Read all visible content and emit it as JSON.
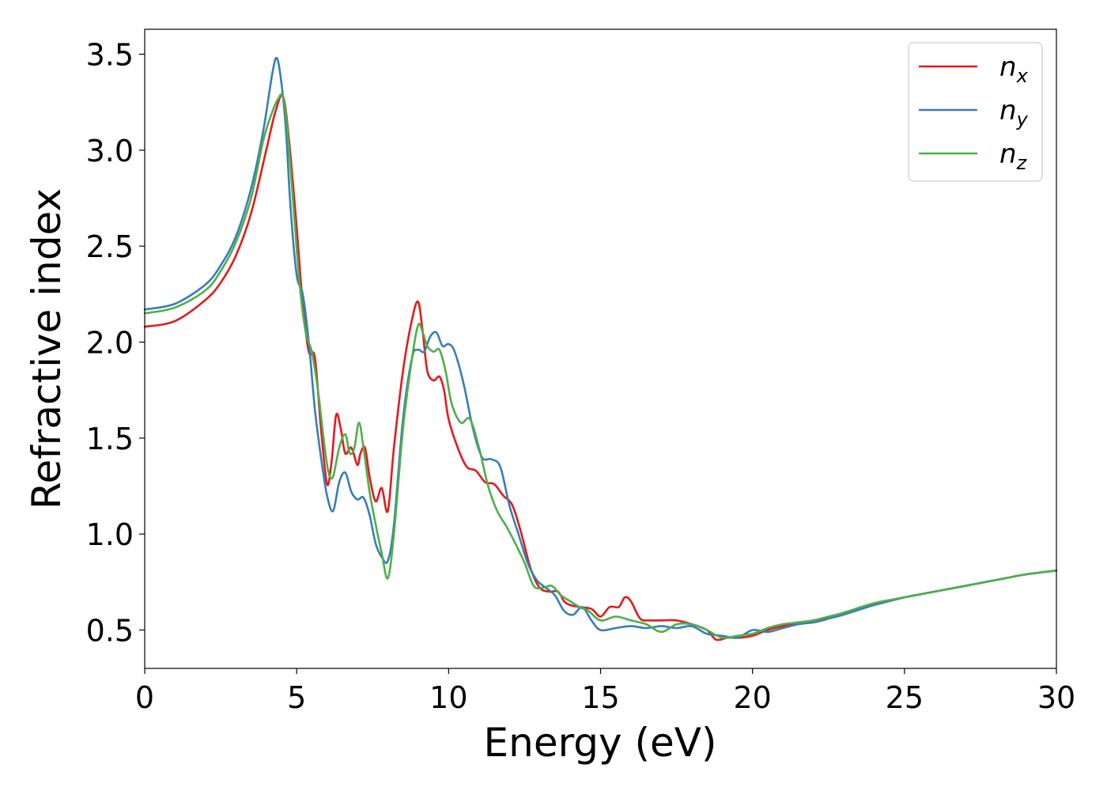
{
  "chart_data": {
    "type": "line",
    "xlabel": "Energy (eV)",
    "ylabel": "Refractive index",
    "xlim": [
      0,
      30
    ],
    "ylim": [
      0.3,
      3.63
    ],
    "xticks": [
      0,
      5,
      10,
      15,
      20,
      25,
      30
    ],
    "xtick_labels": [
      "0",
      "5",
      "10",
      "15",
      "20",
      "25",
      "30"
    ],
    "yticks": [
      0.5,
      1.0,
      1.5,
      2.0,
      2.5,
      3.0,
      3.5
    ],
    "ytick_labels": [
      "0.5",
      "1.0",
      "1.5",
      "2.0",
      "2.5",
      "3.0",
      "3.5"
    ],
    "grid": false,
    "legend_position": "top-right",
    "series": [
      {
        "name": "n",
        "subscript": "x",
        "color": "#e41a1c",
        "x": [
          0,
          1,
          2,
          2.5,
          3,
          3.5,
          4,
          4.3,
          4.55,
          4.75,
          5.0,
          5.2,
          5.4,
          5.6,
          5.8,
          6.0,
          6.15,
          6.3,
          6.45,
          6.6,
          6.8,
          7.0,
          7.1,
          7.25,
          7.4,
          7.6,
          7.8,
          8.0,
          8.2,
          8.5,
          8.8,
          9.0,
          9.15,
          9.3,
          9.5,
          9.7,
          9.85,
          10.0,
          10.3,
          10.6,
          10.9,
          11.2,
          11.5,
          11.8,
          12.1,
          12.4,
          12.7,
          13.0,
          13.3,
          13.6,
          13.8,
          14.0,
          14.3,
          14.7,
          15.0,
          15.3,
          15.6,
          15.8,
          16.0,
          16.3,
          16.6,
          17.0,
          17.5,
          18.0,
          18.5,
          18.8,
          19.2,
          19.6,
          20.0,
          20.5,
          21.0,
          21.5,
          22.0,
          22.5,
          23.0,
          23.5,
          24.0,
          25.0,
          26.0,
          27.0,
          28.0,
          29.0,
          30.0
        ],
        "y": [
          2.08,
          2.11,
          2.22,
          2.31,
          2.45,
          2.67,
          3.0,
          3.2,
          3.28,
          3.05,
          2.6,
          2.2,
          1.95,
          1.92,
          1.55,
          1.26,
          1.38,
          1.62,
          1.55,
          1.42,
          1.45,
          1.36,
          1.42,
          1.45,
          1.3,
          1.17,
          1.24,
          1.12,
          1.45,
          1.85,
          2.12,
          2.21,
          2.05,
          1.85,
          1.8,
          1.82,
          1.75,
          1.6,
          1.45,
          1.35,
          1.33,
          1.27,
          1.26,
          1.2,
          1.15,
          1.0,
          0.82,
          0.72,
          0.7,
          0.7,
          0.65,
          0.63,
          0.62,
          0.61,
          0.57,
          0.62,
          0.62,
          0.67,
          0.65,
          0.56,
          0.55,
          0.55,
          0.55,
          0.53,
          0.5,
          0.45,
          0.46,
          0.46,
          0.47,
          0.5,
          0.52,
          0.54,
          0.54,
          0.56,
          0.59,
          0.61,
          0.63,
          0.67,
          0.7,
          0.73,
          0.76,
          0.79,
          0.81
        ]
      },
      {
        "name": "n",
        "subscript": "y",
        "color": "#377eb8",
        "x": [
          0,
          1,
          2,
          2.5,
          3,
          3.5,
          3.9,
          4.2,
          4.35,
          4.5,
          4.65,
          4.8,
          5.0,
          5.2,
          5.4,
          5.6,
          5.8,
          6.0,
          6.2,
          6.4,
          6.6,
          6.8,
          7.0,
          7.2,
          7.4,
          7.6,
          7.8,
          8.0,
          8.2,
          8.5,
          8.8,
          9.0,
          9.2,
          9.4,
          9.6,
          9.8,
          10.0,
          10.2,
          10.5,
          10.8,
          11.1,
          11.4,
          11.7,
          12.0,
          12.3,
          12.6,
          12.9,
          13.2,
          13.5,
          13.8,
          14.1,
          14.4,
          14.7,
          15.0,
          15.5,
          16.0,
          16.5,
          17.0,
          17.5,
          18.0,
          18.5,
          19.0,
          19.5,
          20.0,
          20.5,
          21.0,
          21.5,
          22.0,
          22.5,
          23.0,
          24.0,
          25.0,
          26.0,
          27.0,
          28.0,
          29.0,
          30.0
        ],
        "y": [
          2.17,
          2.2,
          2.3,
          2.4,
          2.55,
          2.8,
          3.1,
          3.4,
          3.48,
          3.35,
          3.1,
          2.7,
          2.35,
          2.25,
          2.0,
          1.65,
          1.4,
          1.2,
          1.12,
          1.27,
          1.32,
          1.22,
          1.18,
          1.19,
          1.1,
          0.95,
          0.88,
          0.86,
          1.05,
          1.6,
          1.92,
          1.96,
          1.95,
          2.03,
          2.05,
          1.98,
          1.99,
          1.95,
          1.78,
          1.55,
          1.4,
          1.39,
          1.35,
          1.15,
          1.0,
          0.85,
          0.76,
          0.72,
          0.68,
          0.6,
          0.58,
          0.62,
          0.55,
          0.5,
          0.51,
          0.52,
          0.51,
          0.52,
          0.51,
          0.52,
          0.48,
          0.47,
          0.46,
          0.5,
          0.49,
          0.51,
          0.53,
          0.54,
          0.56,
          0.58,
          0.63,
          0.67,
          0.7,
          0.73,
          0.76,
          0.79,
          0.81
        ]
      },
      {
        "name": "n",
        "subscript": "z",
        "color": "#4daf4a",
        "x": [
          0,
          1,
          2,
          2.5,
          3,
          3.5,
          3.9,
          4.2,
          4.4,
          4.55,
          4.7,
          4.9,
          5.1,
          5.3,
          5.5,
          5.7,
          5.9,
          6.05,
          6.2,
          6.4,
          6.6,
          6.75,
          6.9,
          7.05,
          7.2,
          7.4,
          7.6,
          7.8,
          8.0,
          8.2,
          8.5,
          8.8,
          9.0,
          9.15,
          9.3,
          9.5,
          9.7,
          9.9,
          10.1,
          10.4,
          10.7,
          11.0,
          11.3,
          11.6,
          11.9,
          12.2,
          12.5,
          12.8,
          13.1,
          13.4,
          13.7,
          14.0,
          14.3,
          14.6,
          15.0,
          15.5,
          16.0,
          16.5,
          17.0,
          17.5,
          18.0,
          18.5,
          19.0,
          19.5,
          20.0,
          20.5,
          21.0,
          21.5,
          22.0,
          22.5,
          23.0,
          24.0,
          25.0,
          26.0,
          27.0,
          28.0,
          29.0,
          30.0
        ],
        "y": [
          2.15,
          2.18,
          2.27,
          2.37,
          2.52,
          2.75,
          3.05,
          3.2,
          3.27,
          3.28,
          3.1,
          2.7,
          2.3,
          2.05,
          1.95,
          1.75,
          1.48,
          1.32,
          1.3,
          1.45,
          1.52,
          1.42,
          1.45,
          1.58,
          1.45,
          1.22,
          1.05,
          0.9,
          0.77,
          1.0,
          1.55,
          1.92,
          2.09,
          2.05,
          1.98,
          1.95,
          1.96,
          1.85,
          1.68,
          1.58,
          1.6,
          1.45,
          1.25,
          1.12,
          1.04,
          0.95,
          0.85,
          0.73,
          0.72,
          0.73,
          0.68,
          0.65,
          0.62,
          0.6,
          0.55,
          0.57,
          0.55,
          0.53,
          0.49,
          0.53,
          0.53,
          0.5,
          0.46,
          0.47,
          0.48,
          0.51,
          0.53,
          0.54,
          0.55,
          0.57,
          0.59,
          0.64,
          0.67,
          0.7,
          0.73,
          0.76,
          0.79,
          0.81
        ]
      }
    ]
  }
}
